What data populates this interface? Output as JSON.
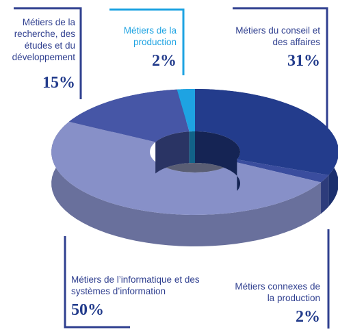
{
  "chart_data": {
    "type": "pie",
    "categories": [
      "Métiers du conseil et des affaires",
      "Métiers connexes de la production",
      "Métiers de l’informatique et des systèmes d’information",
      "Métiers de la recherche, des études et du développement",
      "Métiers de la production"
    ],
    "values": [
      31,
      2,
      50,
      15,
      2
    ],
    "value_labels": [
      "31%",
      "2%",
      "50%",
      "15%",
      "2%"
    ],
    "colors": [
      "#233c8c",
      "#3a4d9e",
      "#8790c8",
      "#4656a6",
      "#1ea3e2"
    ]
  }
}
